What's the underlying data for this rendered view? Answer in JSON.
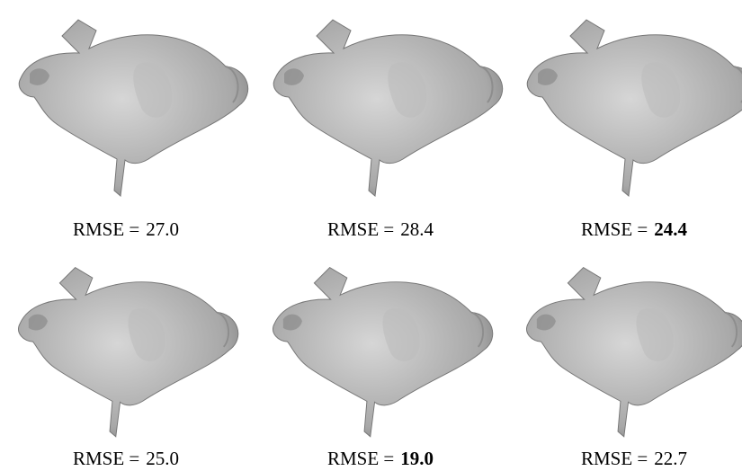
{
  "panels": [
    {
      "label": "RMSE =",
      "value": "27.0",
      "bold": false
    },
    {
      "label": "RMSE =",
      "value": "28.4",
      "bold": false
    },
    {
      "label": "RMSE =",
      "value": "24.4",
      "bold": true
    },
    {
      "label": "RMSE =",
      "value": "25.0",
      "bold": false
    },
    {
      "label": "RMSE =",
      "value": "19.0",
      "bold": true
    },
    {
      "label": "RMSE =",
      "value": "22.7",
      "bold": false
    }
  ]
}
